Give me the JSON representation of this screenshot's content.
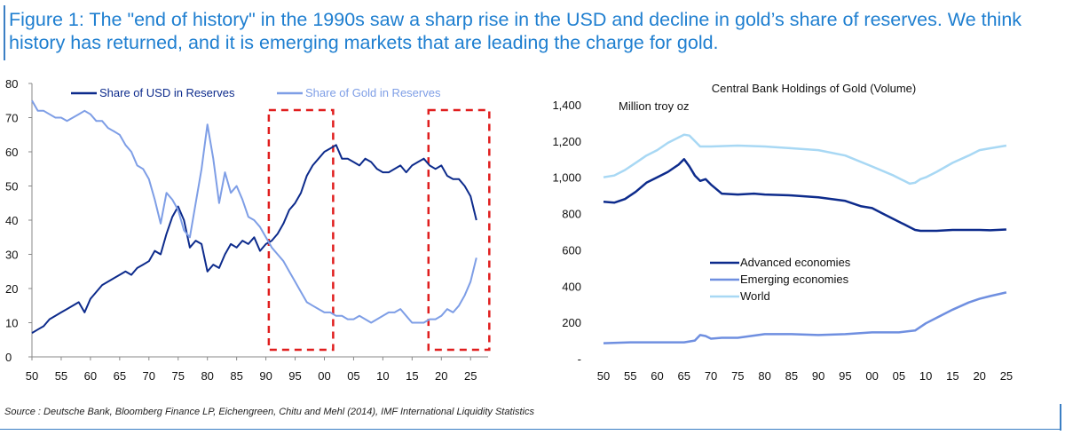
{
  "title": "Figure 1: The \"end of history\" in the 1990s saw a sharp rise in the USD and decline in gold’s share of reserves. We think history has returned, and it is emerging markets that are leading the charge for gold.",
  "source": "Source : Deutsche Bank, Bloomberg Finance LP, Eichengreen, Chitu and Mehl (2014), IMF International Liquidity Statistics",
  "colors": {
    "usd": "#0d2b8c",
    "gold": "#7e9ee6",
    "advanced": "#0d2b8c",
    "emerging": "#6f8fe0",
    "world": "#a8d8f4",
    "highlight": "#e01e1e",
    "title": "#1f7fd0"
  },
  "chart_data": [
    {
      "type": "line",
      "title": "",
      "ylim": [
        0,
        80
      ],
      "xlim": [
        1950,
        2028
      ],
      "y_ticks": [
        0,
        10,
        20,
        30,
        40,
        50,
        60,
        70,
        80
      ],
      "y_tick_labels": [
        "0",
        "10",
        "20",
        "30",
        "40",
        "50",
        "60",
        "70",
        "80"
      ],
      "x_ticks": [
        1950,
        1955,
        1960,
        1965,
        1970,
        1975,
        1980,
        1985,
        1990,
        1995,
        2000,
        2005,
        2010,
        2015,
        2020,
        2025
      ],
      "x_tick_labels": [
        "50",
        "55",
        "60",
        "65",
        "70",
        "75",
        "80",
        "85",
        "90",
        "95",
        "00",
        "05",
        "10",
        "15",
        "20",
        "25"
      ],
      "highlight_ranges": [
        [
          1990.5,
          2001.5
        ],
        [
          2017.8,
          2028.2
        ]
      ],
      "series": [
        {
          "name": "Share of USD in Reserves",
          "color_key": "usd",
          "x": [
            1950,
            1951,
            1952,
            1953,
            1954,
            1955,
            1956,
            1957,
            1958,
            1959,
            1960,
            1961,
            1962,
            1963,
            1964,
            1965,
            1966,
            1967,
            1968,
            1969,
            1970,
            1971,
            1972,
            1973,
            1974,
            1975,
            1976,
            1977,
            1978,
            1979,
            1980,
            1981,
            1982,
            1983,
            1984,
            1985,
            1986,
            1987,
            1988,
            1989,
            1990,
            1991,
            1992,
            1993,
            1994,
            1995,
            1996,
            1997,
            1998,
            1999,
            2000,
            2001,
            2002,
            2003,
            2004,
            2005,
            2006,
            2007,
            2008,
            2009,
            2010,
            2011,
            2012,
            2013,
            2014,
            2015,
            2016,
            2017,
            2018,
            2019,
            2020,
            2021,
            2022,
            2023,
            2024,
            2025,
            2026
          ],
          "values": [
            7,
            8,
            9,
            11,
            12,
            13,
            14,
            15,
            16,
            13,
            17,
            19,
            21,
            22,
            23,
            24,
            25,
            24,
            26,
            27,
            28,
            31,
            30,
            36,
            41,
            44,
            40,
            32,
            34,
            33,
            25,
            27,
            26,
            30,
            33,
            32,
            34,
            33,
            35,
            31,
            33,
            34,
            36,
            39,
            43,
            45,
            48,
            53,
            56,
            58,
            60,
            61,
            62,
            58,
            58,
            57,
            56,
            58,
            57,
            55,
            54,
            54,
            55,
            56,
            54,
            56,
            57,
            58,
            56,
            55,
            56,
            53,
            52,
            52,
            50,
            47,
            40
          ]
        },
        {
          "name": "Share of Gold in Reserves",
          "color_key": "gold",
          "x": [
            1950,
            1951,
            1952,
            1953,
            1954,
            1955,
            1956,
            1957,
            1958,
            1959,
            1960,
            1961,
            1962,
            1963,
            1964,
            1965,
            1966,
            1967,
            1968,
            1969,
            1970,
            1971,
            1972,
            1973,
            1974,
            1975,
            1976,
            1977,
            1978,
            1979,
            1980,
            1981,
            1982,
            1983,
            1984,
            1985,
            1986,
            1987,
            1988,
            1989,
            1990,
            1991,
            1992,
            1993,
            1994,
            1995,
            1996,
            1997,
            1998,
            1999,
            2000,
            2001,
            2002,
            2003,
            2004,
            2005,
            2006,
            2007,
            2008,
            2009,
            2010,
            2011,
            2012,
            2013,
            2014,
            2015,
            2016,
            2017,
            2018,
            2019,
            2020,
            2021,
            2022,
            2023,
            2024,
            2025,
            2026
          ],
          "values": [
            75,
            72,
            72,
            71,
            70,
            70,
            69,
            70,
            71,
            72,
            71,
            69,
            69,
            67,
            66,
            65,
            62,
            60,
            56,
            55,
            52,
            46,
            39,
            48,
            46,
            43,
            37,
            35,
            45,
            55,
            68,
            58,
            45,
            54,
            48,
            50,
            46,
            41,
            40,
            38,
            35,
            32,
            30,
            28,
            25,
            22,
            19,
            16,
            15,
            14,
            13,
            13,
            12,
            12,
            11,
            11,
            12,
            11,
            10,
            11,
            12,
            13,
            13,
            14,
            12,
            10,
            10,
            10,
            11,
            11,
            12,
            14,
            13,
            15,
            18,
            22,
            29
          ]
        }
      ],
      "legend": [
        "Share of USD in Reserves",
        "Share of Gold in Reserves"
      ],
      "legend_position": "top"
    },
    {
      "type": "line",
      "title": "Central Bank Holdings of Gold (Volume)",
      "ylabel": "Million troy oz",
      "ylim": [
        0,
        1400
      ],
      "xlim": [
        1950,
        2026
      ],
      "y_ticks": [
        0,
        200,
        400,
        600,
        800,
        1000,
        1200,
        1400
      ],
      "y_tick_labels": [
        "-",
        "200",
        "400",
        "600",
        "800",
        "1,000",
        "1,200",
        "1,400"
      ],
      "x_ticks": [
        1950,
        1955,
        1960,
        1965,
        1970,
        1975,
        1980,
        1985,
        1990,
        1995,
        2000,
        2005,
        2010,
        2015,
        2020,
        2025
      ],
      "x_tick_labels": [
        "50",
        "55",
        "60",
        "65",
        "70",
        "75",
        "80",
        "85",
        "90",
        "95",
        "00",
        "05",
        "10",
        "15",
        "20",
        "25"
      ],
      "series": [
        {
          "name": "Advanced economies",
          "color_key": "advanced",
          "x": [
            1950,
            1952,
            1954,
            1956,
            1958,
            1960,
            1962,
            1964,
            1965,
            1966,
            1967,
            1968,
            1969,
            1970,
            1972,
            1975,
            1978,
            1980,
            1985,
            1990,
            1995,
            1998,
            2000,
            2002,
            2004,
            2006,
            2008,
            2009,
            2010,
            2012,
            2015,
            2020,
            2022,
            2025
          ],
          "values": [
            865,
            860,
            880,
            920,
            970,
            1000,
            1030,
            1070,
            1100,
            1060,
            1010,
            980,
            990,
            960,
            910,
            905,
            910,
            905,
            900,
            890,
            870,
            840,
            830,
            800,
            770,
            740,
            710,
            705,
            705,
            705,
            710,
            710,
            708,
            712
          ]
        },
        {
          "name": "Emerging economies",
          "color_key": "emerging",
          "x": [
            1950,
            1955,
            1960,
            1965,
            1967,
            1968,
            1969,
            1970,
            1972,
            1975,
            1980,
            1985,
            1990,
            1995,
            2000,
            2005,
            2008,
            2010,
            2012,
            2015,
            2018,
            2020,
            2022,
            2025
          ],
          "values": [
            85,
            90,
            90,
            90,
            100,
            130,
            125,
            110,
            115,
            115,
            135,
            135,
            130,
            135,
            145,
            145,
            155,
            195,
            225,
            270,
            310,
            330,
            345,
            365
          ]
        },
        {
          "name": "World",
          "color_key": "world",
          "x": [
            1950,
            1952,
            1954,
            1956,
            1958,
            1960,
            1962,
            1964,
            1965,
            1966,
            1967,
            1968,
            1970,
            1975,
            1980,
            1985,
            1990,
            1995,
            2000,
            2004,
            2006,
            2007,
            2008,
            2009,
            2010,
            2012,
            2015,
            2018,
            2020,
            2022,
            2025
          ],
          "values": [
            1000,
            1010,
            1040,
            1080,
            1120,
            1150,
            1190,
            1220,
            1235,
            1230,
            1200,
            1170,
            1170,
            1175,
            1170,
            1160,
            1150,
            1120,
            1060,
            1010,
            980,
            965,
            970,
            990,
            1000,
            1030,
            1080,
            1120,
            1150,
            1160,
            1175
          ]
        }
      ],
      "legend": [
        "Advanced economies",
        "Emerging economies",
        "World"
      ],
      "legend_position": "center"
    }
  ]
}
